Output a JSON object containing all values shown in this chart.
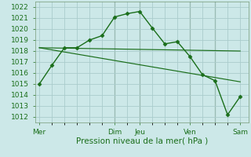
{
  "bg_color": "#cce8e8",
  "grid_color": "#aacccc",
  "line_color": "#1a6e1a",
  "marker_color": "#1a6e1a",
  "xlabel": "Pression niveau de la mer( hPa )",
  "ylim": [
    1011.5,
    1022.5
  ],
  "yticks": [
    1012,
    1013,
    1014,
    1015,
    1016,
    1017,
    1018,
    1019,
    1020,
    1021,
    1022
  ],
  "xtick_labels": [
    "Mer",
    "Dim",
    "Jeu",
    "Ven",
    "Sam"
  ],
  "xtick_positions": [
    0,
    36,
    48,
    72,
    96
  ],
  "xlim": [
    -2,
    100
  ],
  "series": [
    {
      "x": [
        0,
        6,
        12,
        18,
        24,
        30,
        36,
        42,
        48,
        54,
        60,
        66,
        72,
        78,
        84,
        90,
        96
      ],
      "y": [
        1015.0,
        1016.7,
        1018.3,
        1018.3,
        1019.0,
        1019.4,
        1021.1,
        1021.4,
        1021.6,
        1020.1,
        1018.65,
        1018.85,
        1017.5,
        1015.85,
        1015.3,
        1012.2,
        1013.85
      ],
      "marker": true
    },
    {
      "x": [
        0,
        96
      ],
      "y": [
        1018.3,
        1018.0
      ],
      "marker": false
    },
    {
      "x": [
        0,
        96
      ],
      "y": [
        1018.3,
        1015.2
      ],
      "marker": false
    }
  ],
  "vlines_x": [
    36,
    48,
    72,
    84
  ],
  "tick_fontsize": 6.5,
  "xlabel_fontsize": 7.5
}
